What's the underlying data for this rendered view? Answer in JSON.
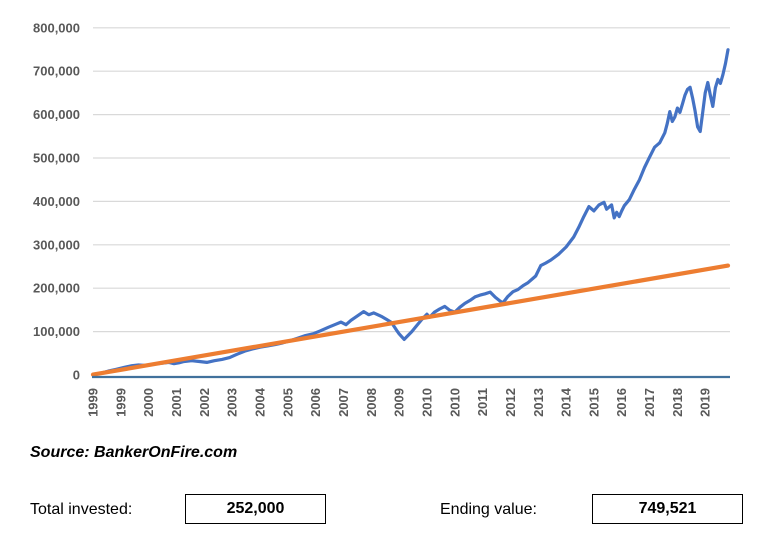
{
  "source": {
    "text": "Source: BankerOnFire.com"
  },
  "summary": {
    "total_invested_label": "Total invested:",
    "total_invested_value": "252,000",
    "ending_value_label": "Ending value:",
    "ending_value_value": "749,521"
  },
  "colors": {
    "portfolio_line": "#4472C4",
    "invested_line": "#ED7D31",
    "axis_line": "#41719C",
    "gridline": "#D9D9D9",
    "axis_label": "#595959",
    "box_border": "#000000"
  },
  "chart_data": {
    "type": "line",
    "title": "",
    "xlabel": "",
    "ylabel": "",
    "grid": "horizontal-only",
    "legend": "none",
    "ylim": [
      0,
      800000
    ],
    "y_tick_values": [
      0,
      100000,
      200000,
      300000,
      400000,
      500000,
      600000,
      700000,
      800000
    ],
    "y_tick_labels": [
      "0",
      "100,000",
      "200,000",
      "300,000",
      "400,000",
      "500,000",
      "600,000",
      "700,000",
      "800,000"
    ],
    "x_range_months": [
      0,
      251
    ],
    "x_tick_step_months": 11,
    "x_tick_labels": [
      "1999",
      "1999",
      "2000",
      "2001",
      "2002",
      "2003",
      "2004",
      "2005",
      "2006",
      "2007",
      "2008",
      "2009",
      "2010",
      "2010",
      "2011",
      "2012",
      "2013",
      "2014",
      "2015",
      "2016",
      "2017",
      "2018",
      "2019"
    ],
    "series": [
      {
        "name": "portfolio-value",
        "color": "#4472C4",
        "width": 3.2,
        "months": [
          0,
          3,
          6,
          9,
          12,
          15,
          18,
          21,
          24,
          27,
          30,
          32,
          34,
          36,
          39,
          42,
          45,
          48,
          51,
          54,
          57,
          60,
          63,
          66,
          69,
          72,
          75,
          78,
          81,
          84,
          87,
          90,
          93,
          96,
          98,
          100,
          102,
          104,
          107,
          109,
          111,
          114,
          116,
          118,
          120,
          121,
          123,
          126,
          128,
          130,
          132,
          133,
          135,
          137,
          139,
          141,
          143,
          145,
          147,
          149,
          151,
          153,
          155,
          157,
          159,
          161,
          162,
          164,
          166,
          168,
          170,
          172,
          175,
          177,
          179,
          181,
          184,
          187,
          190,
          192,
          194,
          196,
          198,
          200,
          202,
          203,
          205,
          206,
          207,
          208,
          209,
          210,
          212,
          214,
          216,
          218,
          220,
          222,
          224,
          226,
          227,
          228,
          229,
          230,
          231,
          232,
          233,
          234,
          235,
          236,
          237,
          238,
          239,
          240,
          241,
          242,
          243,
          244,
          245,
          246,
          247,
          248,
          249,
          250,
          251
        ],
        "values": [
          1000,
          4000,
          9000,
          13000,
          17000,
          21000,
          23000,
          22000,
          25000,
          27000,
          29000,
          26000,
          28000,
          31000,
          33000,
          31000,
          29000,
          33000,
          36000,
          40000,
          48000,
          55000,
          60000,
          64000,
          67000,
          70000,
          74000,
          79000,
          85000,
          91000,
          95000,
          102000,
          110000,
          117000,
          122000,
          116000,
          126000,
          134000,
          146000,
          139000,
          143000,
          135000,
          128000,
          121000,
          103000,
          95000,
          82000,
          100000,
          114000,
          128000,
          140000,
          133000,
          145000,
          152000,
          158000,
          149000,
          145000,
          156000,
          165000,
          172000,
          180000,
          184000,
          187000,
          191000,
          179000,
          170000,
          166000,
          181000,
          192000,
          197000,
          206000,
          213000,
          228000,
          252000,
          258000,
          265000,
          278000,
          295000,
          318000,
          340000,
          365000,
          388000,
          378000,
          392000,
          398000,
          382000,
          392000,
          362000,
          375000,
          365000,
          378000,
          390000,
          404000,
          428000,
          450000,
          478000,
          502000,
          525000,
          535000,
          558000,
          580000,
          607000,
          584000,
          595000,
          615000,
          605000,
          625000,
          645000,
          658000,
          663000,
          638000,
          608000,
          572000,
          561000,
          605000,
          650000,
          674000,
          645000,
          619000,
          662000,
          681000,
          672000,
          692000,
          718000,
          749521
        ]
      },
      {
        "name": "total-invested",
        "color": "#ED7D31",
        "width": 4.2,
        "months": [
          0,
          251
        ],
        "values": [
          1000,
          252000
        ]
      }
    ]
  }
}
